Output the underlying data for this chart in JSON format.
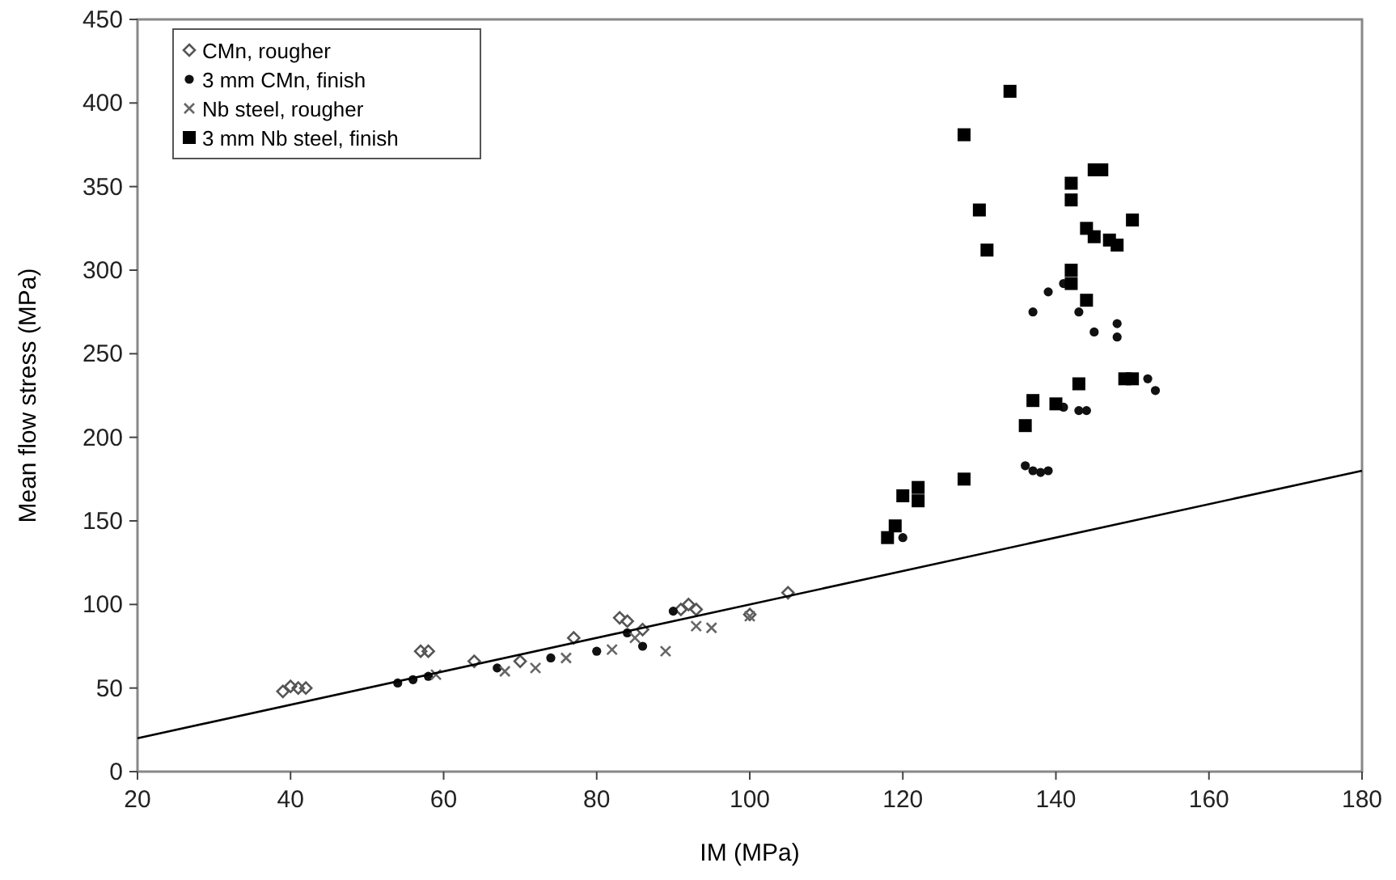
{
  "chart_data": {
    "type": "scatter",
    "xlabel": "IM (MPa)",
    "ylabel": "Mean flow stress (MPa)",
    "xlim": [
      20,
      180
    ],
    "xticks": [
      20,
      40,
      60,
      80,
      100,
      120,
      140,
      160,
      180
    ],
    "ylim": [
      0,
      450
    ],
    "yticks": [
      0,
      50,
      100,
      150,
      200,
      250,
      300,
      350,
      400,
      450
    ],
    "grid": false,
    "legend": "top left",
    "series": [
      {
        "name": "CMn, rougher",
        "color": "#555555",
        "marker": "diamond",
        "x": [
          39,
          40,
          41,
          42,
          57,
          58,
          64,
          70,
          77,
          83,
          84,
          86,
          91,
          92,
          93,
          100,
          105
        ],
        "values": [
          48,
          51,
          50,
          50,
          72,
          72,
          66,
          66,
          80,
          92,
          90,
          85,
          97,
          100,
          97,
          94,
          107
        ]
      },
      {
        "name": "3 mm CMn, finish",
        "color": "#111111",
        "marker": "circle",
        "x": [
          136,
          137,
          138,
          139,
          137,
          139,
          141,
          143,
          145,
          148,
          148,
          152,
          153,
          141,
          143,
          144,
          54,
          56,
          58,
          67,
          74,
          80,
          84,
          86,
          90,
          120
        ],
        "values": [
          183,
          180,
          179,
          180,
          275,
          287,
          292,
          275,
          263,
          268,
          260,
          235,
          228,
          218,
          216,
          216,
          53,
          55,
          57,
          62,
          68,
          72,
          83,
          75,
          96,
          140
        ]
      },
      {
        "name": "Nb steel, rougher",
        "color": "#666666",
        "marker": "cross",
        "x": [
          59,
          68,
          72,
          76,
          82,
          85,
          89,
          93,
          95,
          100
        ],
        "values": [
          58,
          60,
          62,
          68,
          73,
          80,
          72,
          87,
          86,
          93
        ]
      },
      {
        "name": "3 mm Nb steel, finish",
        "color": "#000000",
        "marker": "square",
        "x": [
          128,
          134,
          130,
          131,
          142,
          142,
          145,
          146,
          142,
          142,
          144,
          145,
          147,
          148,
          150,
          144,
          140,
          143,
          137,
          136,
          128,
          122,
          122,
          120,
          119,
          118,
          149,
          150
        ],
        "values": [
          381,
          407,
          336,
          312,
          352,
          342,
          360,
          360,
          300,
          292,
          325,
          320,
          318,
          315,
          330,
          282,
          220,
          232,
          222,
          207,
          175,
          170,
          162,
          165,
          147,
          140,
          235,
          235
        ]
      },
      {
        "type": "line",
        "color": "#000000",
        "marker": "none",
        "x": [
          20,
          180
        ],
        "values": [
          20,
          180
        ]
      }
    ]
  }
}
